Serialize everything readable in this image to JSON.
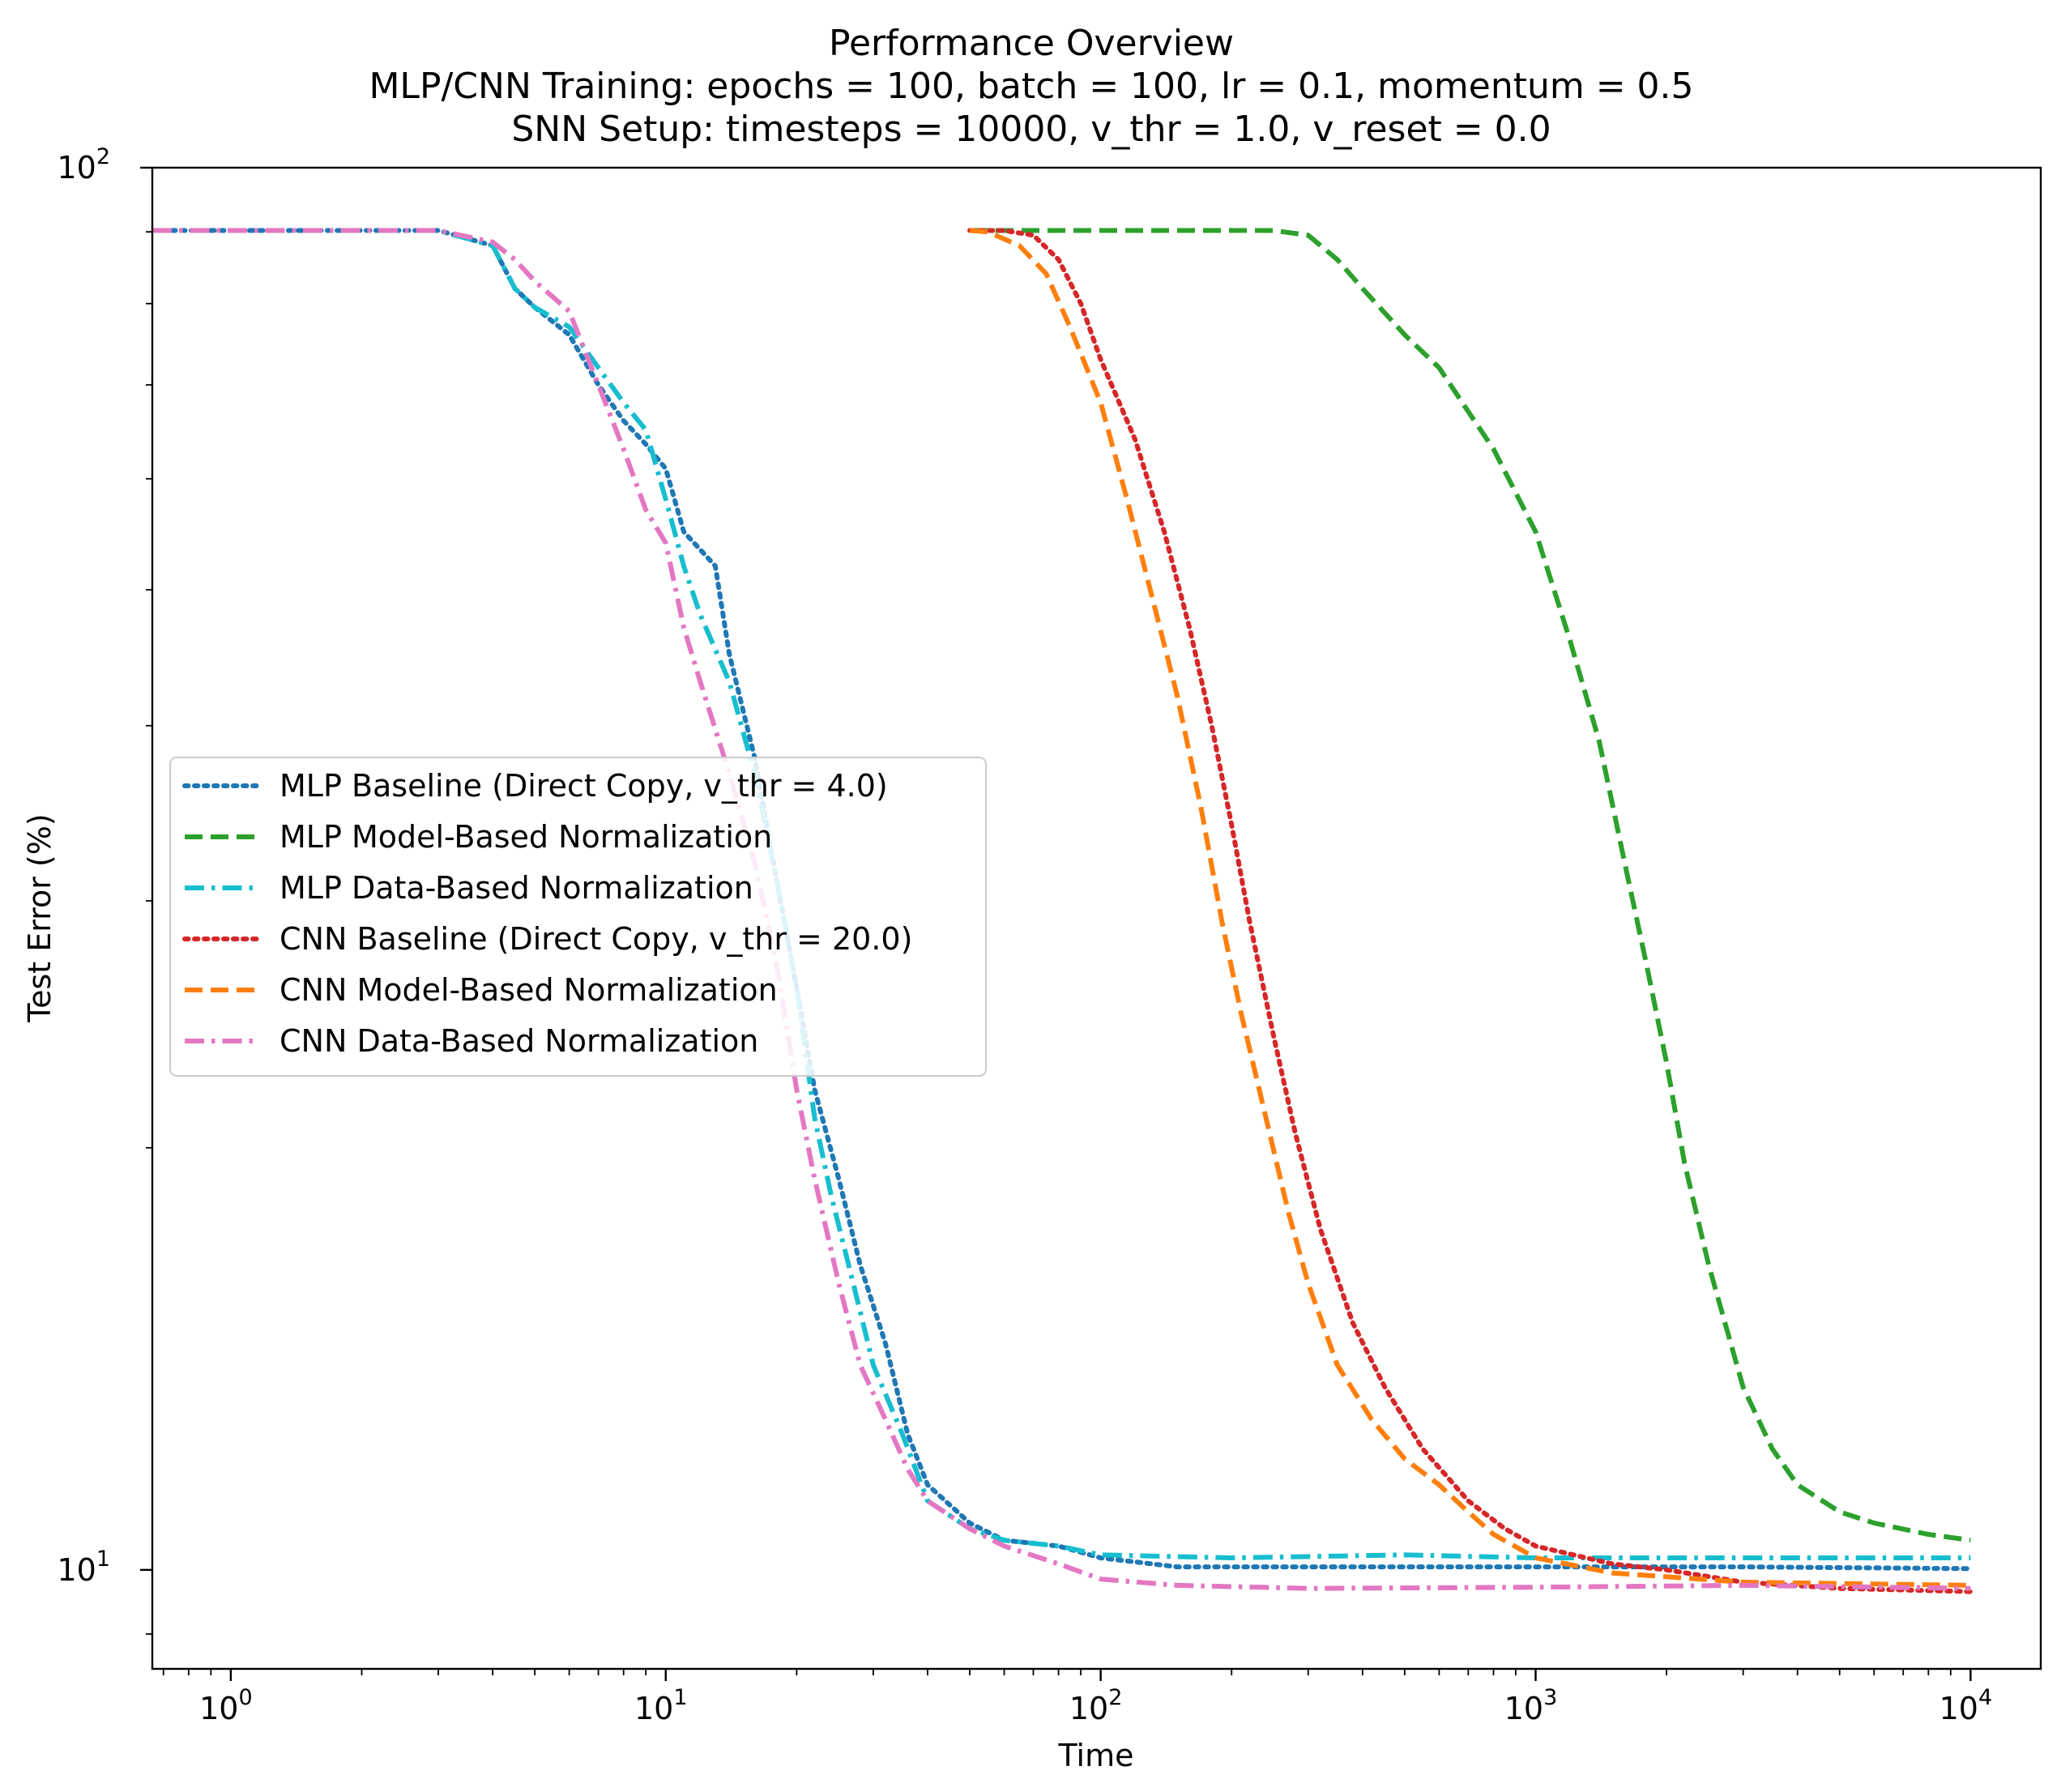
{
  "chart_data": {
    "type": "line",
    "title_lines": [
      "Performance Overview",
      "MLP/CNN Training: epochs = 100, batch = 100, lr = 0.1, momentum = 0.5",
      "SNN Setup: timesteps = 10000, v_thr = 1.0, v_reset = 0.0"
    ],
    "xlabel": "Time",
    "ylabel": "Test Error (%)",
    "xscale": "log",
    "yscale": "log",
    "xlim": [
      0.66,
      14500
    ],
    "ylim": [
      8.5,
      100
    ],
    "x_ticks": [
      {
        "value": 1,
        "base": "10",
        "exp": "0"
      },
      {
        "value": 10,
        "base": "10",
        "exp": "1"
      },
      {
        "value": 100,
        "base": "10",
        "exp": "2"
      },
      {
        "value": 1000,
        "base": "10",
        "exp": "3"
      },
      {
        "value": 10000,
        "base": "10",
        "exp": "4"
      }
    ],
    "y_ticks": [
      {
        "value": 10,
        "base": "10",
        "exp": "1"
      },
      {
        "value": 100,
        "base": "10",
        "exp": "2"
      }
    ],
    "grid": false,
    "legend_position": "center-left",
    "series": [
      {
        "name": "MLP Baseline (Direct Copy, v_thr = 4.0)",
        "color": "#1f77b4",
        "style": "dotted",
        "points": [
          [
            0.66,
            90.2
          ],
          [
            3,
            90.2
          ],
          [
            4,
            88
          ],
          [
            4.5,
            82
          ],
          [
            5,
            79.5
          ],
          [
            6,
            76
          ],
          [
            7,
            70
          ],
          [
            8,
            66
          ],
          [
            9,
            63.5
          ],
          [
            10,
            61
          ],
          [
            11,
            55
          ],
          [
            13,
            52
          ],
          [
            14,
            45
          ],
          [
            16,
            38
          ],
          [
            18,
            31
          ],
          [
            20,
            26
          ],
          [
            22,
            22
          ],
          [
            25,
            19
          ],
          [
            28,
            16.5
          ],
          [
            32,
            14.5
          ],
          [
            36,
            12.5
          ],
          [
            40,
            11.5
          ],
          [
            50,
            10.8
          ],
          [
            60,
            10.5
          ],
          [
            80,
            10.4
          ],
          [
            100,
            10.2
          ],
          [
            150,
            10.05
          ],
          [
            300,
            10.05
          ],
          [
            1000,
            10.05
          ],
          [
            3000,
            10.05
          ],
          [
            10000,
            10.02
          ]
        ]
      },
      {
        "name": "MLP Model-Based Normalization",
        "color": "#2ca02c",
        "style": "dashed",
        "points": [
          [
            50,
            90.2
          ],
          [
            250,
            90.2
          ],
          [
            300,
            89.5
          ],
          [
            350,
            86
          ],
          [
            400,
            82
          ],
          [
            500,
            76
          ],
          [
            600,
            72
          ],
          [
            700,
            67
          ],
          [
            800,
            63
          ],
          [
            1000,
            55
          ],
          [
            1200,
            46
          ],
          [
            1400,
            39
          ],
          [
            1600,
            32
          ],
          [
            1800,
            27
          ],
          [
            2000,
            23
          ],
          [
            2200,
            19.5
          ],
          [
            2500,
            16.5
          ],
          [
            3000,
            13.5
          ],
          [
            3500,
            12.2
          ],
          [
            4000,
            11.5
          ],
          [
            5000,
            11
          ],
          [
            6000,
            10.8
          ],
          [
            8000,
            10.6
          ],
          [
            10000,
            10.5
          ]
        ]
      },
      {
        "name": "MLP Data-Based Normalization",
        "color": "#17becf",
        "style": "dashdot",
        "points": [
          [
            0.66,
            90.2
          ],
          [
            3,
            90.2
          ],
          [
            4,
            88
          ],
          [
            4.5,
            82
          ],
          [
            5,
            79.5
          ],
          [
            6,
            77
          ],
          [
            7,
            72
          ],
          [
            8,
            68
          ],
          [
            9,
            65
          ],
          [
            10,
            58
          ],
          [
            11,
            52
          ],
          [
            12,
            48
          ],
          [
            14,
            43
          ],
          [
            16,
            37
          ],
          [
            18,
            31
          ],
          [
            20,
            26
          ],
          [
            22,
            21
          ],
          [
            24,
            18.5
          ],
          [
            27,
            16
          ],
          [
            30,
            14
          ],
          [
            35,
            12.5
          ],
          [
            40,
            11.2
          ],
          [
            50,
            10.7
          ],
          [
            60,
            10.5
          ],
          [
            80,
            10.4
          ],
          [
            100,
            10.25
          ],
          [
            200,
            10.2
          ],
          [
            500,
            10.25
          ],
          [
            1000,
            10.2
          ],
          [
            3000,
            10.2
          ],
          [
            10000,
            10.2
          ]
        ]
      },
      {
        "name": "CNN Baseline (Direct Copy, v_thr = 20.0)",
        "color": "#d62728",
        "style": "dotted",
        "points": [
          [
            50,
            90.2
          ],
          [
            60,
            90.2
          ],
          [
            70,
            89.5
          ],
          [
            80,
            86
          ],
          [
            90,
            80
          ],
          [
            100,
            73
          ],
          [
            120,
            64
          ],
          [
            140,
            55
          ],
          [
            160,
            47
          ],
          [
            180,
            40
          ],
          [
            200,
            34
          ],
          [
            220,
            29
          ],
          [
            250,
            24
          ],
          [
            280,
            20.5
          ],
          [
            320,
            17.5
          ],
          [
            380,
            15
          ],
          [
            450,
            13.5
          ],
          [
            550,
            12.2
          ],
          [
            700,
            11.2
          ],
          [
            850,
            10.7
          ],
          [
            1000,
            10.4
          ],
          [
            1500,
            10.1
          ],
          [
            2000,
            10
          ],
          [
            3000,
            9.8
          ],
          [
            5000,
            9.7
          ],
          [
            10000,
            9.65
          ]
        ]
      },
      {
        "name": "CNN Model-Based Normalization",
        "color": "#ff7f0e",
        "style": "dashed",
        "points": [
          [
            50,
            90.2
          ],
          [
            55,
            90
          ],
          [
            65,
            88
          ],
          [
            75,
            84
          ],
          [
            85,
            77
          ],
          [
            100,
            68
          ],
          [
            115,
            58
          ],
          [
            130,
            50
          ],
          [
            150,
            42
          ],
          [
            170,
            35
          ],
          [
            190,
            29
          ],
          [
            210,
            25
          ],
          [
            240,
            21
          ],
          [
            270,
            18
          ],
          [
            300,
            16
          ],
          [
            350,
            14
          ],
          [
            420,
            12.8
          ],
          [
            500,
            12
          ],
          [
            600,
            11.5
          ],
          [
            700,
            11
          ],
          [
            800,
            10.6
          ],
          [
            1000,
            10.2
          ],
          [
            1500,
            9.95
          ],
          [
            3000,
            9.8
          ],
          [
            10000,
            9.75
          ]
        ]
      },
      {
        "name": "CNN Data-Based Normalization",
        "color": "#e377c2",
        "style": "dashdot",
        "points": [
          [
            0.66,
            90.2
          ],
          [
            3,
            90.2
          ],
          [
            4,
            88.5
          ],
          [
            4.5,
            86
          ],
          [
            5,
            83
          ],
          [
            6,
            79
          ],
          [
            7,
            70
          ],
          [
            8,
            63
          ],
          [
            9,
            57
          ],
          [
            10,
            54
          ],
          [
            11,
            47
          ],
          [
            12,
            43
          ],
          [
            14,
            37
          ],
          [
            16,
            32
          ],
          [
            18,
            27
          ],
          [
            20,
            22
          ],
          [
            22,
            19
          ],
          [
            25,
            16
          ],
          [
            28,
            14
          ],
          [
            32,
            12.8
          ],
          [
            36,
            11.8
          ],
          [
            40,
            11.2
          ],
          [
            50,
            10.7
          ],
          [
            60,
            10.4
          ],
          [
            80,
            10.1
          ],
          [
            100,
            9.85
          ],
          [
            150,
            9.75
          ],
          [
            300,
            9.7
          ],
          [
            1000,
            9.72
          ],
          [
            3000,
            9.75
          ],
          [
            10000,
            9.7
          ]
        ]
      }
    ]
  }
}
